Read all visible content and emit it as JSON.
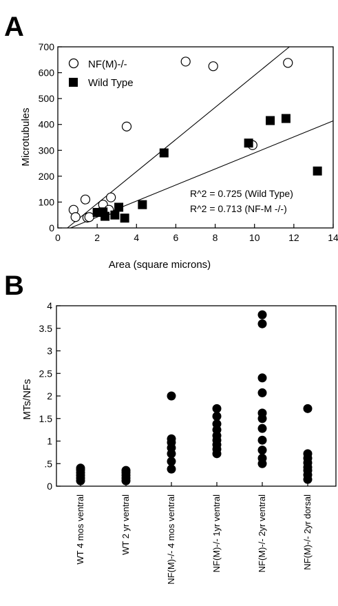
{
  "panels": {
    "a": {
      "letter": "A"
    },
    "b": {
      "letter": "B"
    }
  },
  "colors": {
    "ink": "#000000",
    "paper": "#ffffff"
  },
  "chart_data": [
    {
      "type": "scatter",
      "title": "",
      "xlabel": "Area (square microns)",
      "ylabel": "Microtubules",
      "xlim": [
        0,
        14
      ],
      "ylim": [
        0,
        700
      ],
      "xticks": [
        0,
        2,
        4,
        6,
        8,
        10,
        12,
        14
      ],
      "yticks": [
        0,
        100,
        200,
        300,
        400,
        500,
        600,
        700
      ],
      "grid": false,
      "legend_position": "top-left",
      "series": [
        {
          "name": "NF(M)-/-",
          "marker": "open-circle",
          "points": [
            [
              0.8,
              70
            ],
            [
              0.9,
              42
            ],
            [
              1.4,
              110
            ],
            [
              1.5,
              40
            ],
            [
              1.6,
              42
            ],
            [
              2.3,
              90
            ],
            [
              2.6,
              70
            ],
            [
              2.7,
              118
            ],
            [
              3.5,
              392
            ],
            [
              6.5,
              643
            ],
            [
              7.9,
              625
            ],
            [
              9.9,
              320
            ],
            [
              11.7,
              638
            ]
          ],
          "fit": {
            "slope": 62.0,
            "intercept": -30
          }
        },
        {
          "name": "Wild Type",
          "marker": "filled-square",
          "points": [
            [
              2.0,
              60
            ],
            [
              2.3,
              62
            ],
            [
              2.4,
              45
            ],
            [
              2.9,
              50
            ],
            [
              3.1,
              80
            ],
            [
              3.4,
              38
            ],
            [
              4.3,
              90
            ],
            [
              5.4,
              290
            ],
            [
              9.7,
              328
            ],
            [
              10.8,
              415
            ],
            [
              11.6,
              423
            ],
            [
              13.2,
              220
            ]
          ],
          "fit": {
            "slope": 31.0,
            "intercept": -20
          }
        }
      ],
      "annotations": [
        "R^2 = 0.725 (Wild Type)",
        "R^2 = 0.713 (NF-M -/-)"
      ]
    },
    {
      "type": "scatter",
      "title": "",
      "xlabel": "",
      "ylabel": "MTs/NFs",
      "ylim": [
        0,
        4
      ],
      "yticks": [
        {
          "value": 0,
          "label": "0"
        },
        {
          "value": 0.5,
          "label": ".5"
        },
        {
          "value": 1,
          "label": "1"
        },
        {
          "value": 1.5,
          "label": "1.5"
        },
        {
          "value": 2,
          "label": "2"
        },
        {
          "value": 2.5,
          "label": "2.5"
        },
        {
          "value": 3,
          "label": "3"
        },
        {
          "value": 3.5,
          "label": "3.5"
        },
        {
          "value": 4,
          "label": "4"
        }
      ],
      "grid": false,
      "categories": [
        "WT 4 mos ventral",
        "WT 2 yr ventral",
        "NF(M)-/- 4 mos ventral",
        "NF(M)-/- 1yr ventral",
        "NF(M)-/- 2yr ventral",
        "NF(M)-/- 2yr dorsal"
      ],
      "groups": [
        [
          0.12,
          0.18,
          0.24,
          0.3,
          0.36,
          0.4
        ],
        [
          0.12,
          0.18,
          0.24,
          0.3,
          0.35
        ],
        [
          0.38,
          0.55,
          0.72,
          0.85,
          0.97,
          1.05,
          2.0
        ],
        [
          0.72,
          0.82,
          0.92,
          1.02,
          1.12,
          1.25,
          1.38,
          1.55,
          1.72
        ],
        [
          0.5,
          0.62,
          0.8,
          1.02,
          1.28,
          1.5,
          1.62,
          2.07,
          2.4,
          3.6,
          3.8
        ],
        [
          0.15,
          0.25,
          0.35,
          0.42,
          0.52,
          0.62,
          0.72,
          1.72
        ]
      ]
    }
  ]
}
